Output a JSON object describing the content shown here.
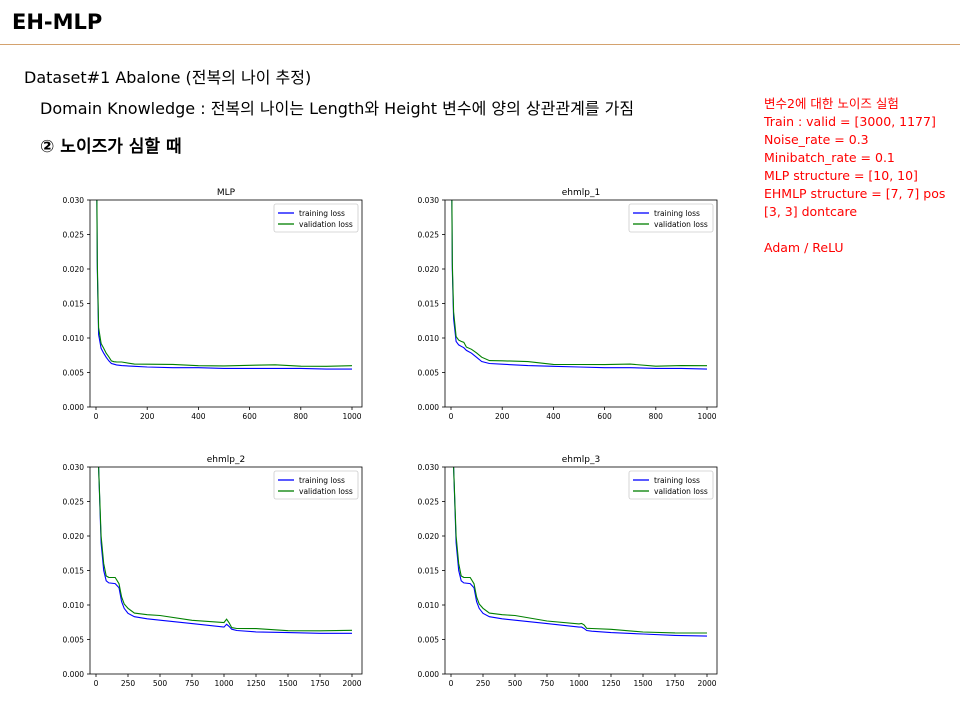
{
  "slide": {
    "title": "EH-MLP",
    "line1": "Dataset#1 Abalone (전복의 나이 추정)",
    "line2": "Domain Knowledge : 전복의 나이는 Length와 Height 변수에 양의 상관관계를 가짐",
    "line3": "② 노이즈가 심할 때"
  },
  "notes": [
    "변수2에 대한 노이즈 실험",
    "Train : valid = [3000, 1177]",
    "Noise_rate = 0.3",
    "Minibatch_rate = 0.1",
    "MLP structure = [10, 10]",
    "EHMLP structure = [7, 7] pos",
    "[3, 3] dontcare",
    "",
    "Adam / ReLU"
  ],
  "colors": {
    "training": "#0000ff",
    "validation": "#008000",
    "accent_rule": "#d4a26e",
    "notes": "#ff0000"
  },
  "chart_data": [
    {
      "type": "line",
      "title": "MLP",
      "xlim": [
        0,
        1000
      ],
      "ylim": [
        0.0,
        0.03
      ],
      "xticks": [
        0,
        200,
        400,
        600,
        800,
        1000
      ],
      "yticks": [
        "0.000",
        "0.005",
        "0.010",
        "0.015",
        "0.020",
        "0.025",
        "0.030"
      ],
      "legend": "top-right",
      "series": [
        {
          "name": "training loss",
          "color": "#0000ff",
          "x": [
            0,
            5,
            10,
            20,
            30,
            40,
            50,
            60,
            70,
            80,
            100,
            150,
            200,
            300,
            400,
            500,
            600,
            700,
            800,
            900,
            1000
          ],
          "y": [
            0.05,
            0.02,
            0.0105,
            0.0085,
            0.0078,
            0.0072,
            0.0067,
            0.0063,
            0.0062,
            0.0061,
            0.006,
            0.0059,
            0.0058,
            0.0057,
            0.0057,
            0.0056,
            0.0056,
            0.0056,
            0.0056,
            0.0055,
            0.0055
          ]
        },
        {
          "name": "validation loss",
          "color": "#008000",
          "x": [
            0,
            5,
            10,
            20,
            30,
            40,
            50,
            60,
            70,
            80,
            100,
            150,
            200,
            300,
            400,
            500,
            600,
            700,
            800,
            900,
            1000
          ],
          "y": [
            0.05,
            0.021,
            0.0115,
            0.0092,
            0.0085,
            0.0078,
            0.0072,
            0.0068,
            0.0066,
            0.0065,
            0.0064,
            0.0063,
            0.0062,
            0.0061,
            0.0061,
            0.006,
            0.006,
            0.006,
            0.006,
            0.0059,
            0.0059
          ]
        }
      ]
    },
    {
      "type": "line",
      "title": "ehmlp_1",
      "xlim": [
        0,
        1000
      ],
      "ylim": [
        0.0,
        0.03
      ],
      "xticks": [
        0,
        200,
        400,
        600,
        800,
        1000
      ],
      "yticks": [
        "0.000",
        "0.005",
        "0.010",
        "0.015",
        "0.020",
        "0.025",
        "0.030"
      ],
      "legend": "top-right",
      "series": [
        {
          "name": "training loss",
          "color": "#0000ff",
          "x": [
            0,
            5,
            10,
            20,
            30,
            40,
            50,
            60,
            80,
            100,
            120,
            150,
            200,
            300,
            400,
            500,
            600,
            700,
            800,
            900,
            1000
          ],
          "y": [
            0.05,
            0.02,
            0.0128,
            0.0095,
            0.009,
            0.0088,
            0.0086,
            0.0082,
            0.0078,
            0.0072,
            0.0066,
            0.0063,
            0.0062,
            0.006,
            0.0059,
            0.0058,
            0.0057,
            0.0057,
            0.0056,
            0.0056,
            0.0055
          ]
        },
        {
          "name": "validation loss",
          "color": "#008000",
          "x": [
            0,
            5,
            10,
            20,
            30,
            40,
            50,
            60,
            80,
            100,
            120,
            150,
            200,
            300,
            400,
            500,
            600,
            700,
            800,
            900,
            1000
          ],
          "y": [
            0.05,
            0.021,
            0.0138,
            0.0102,
            0.0097,
            0.0095,
            0.0093,
            0.0088,
            0.0084,
            0.0078,
            0.0071,
            0.0068,
            0.0067,
            0.0065,
            0.0063,
            0.0062,
            0.0061,
            0.0061,
            0.006,
            0.006,
            0.0059
          ]
        }
      ]
    },
    {
      "type": "line",
      "title": "ehmlp_2",
      "xlim": [
        0,
        2000
      ],
      "ylim": [
        0.0,
        0.03
      ],
      "xticks": [
        0,
        250,
        500,
        750,
        1000,
        1250,
        1500,
        1750,
        2000
      ],
      "yticks": [
        "0.000",
        "0.005",
        "0.010",
        "0.015",
        "0.020",
        "0.025",
        "0.030"
      ],
      "legend": "top-right",
      "series": [
        {
          "name": "training loss",
          "color": "#0000ff",
          "x": [
            0,
            20,
            40,
            60,
            80,
            100,
            150,
            180,
            200,
            220,
            250,
            300,
            400,
            500,
            750,
            1000,
            1020,
            1040,
            1060,
            1100,
            1250,
            1500,
            1750,
            2000
          ],
          "y": [
            0.05,
            0.03,
            0.019,
            0.015,
            0.0135,
            0.0132,
            0.0131,
            0.0125,
            0.0105,
            0.0095,
            0.0088,
            0.0083,
            0.008,
            0.0078,
            0.0073,
            0.0068,
            0.0072,
            0.0069,
            0.0065,
            0.0063,
            0.0061,
            0.006,
            0.0059,
            0.0059
          ]
        },
        {
          "name": "validation loss",
          "color": "#008000",
          "x": [
            0,
            20,
            40,
            60,
            80,
            100,
            150,
            180,
            200,
            220,
            250,
            300,
            400,
            500,
            750,
            1000,
            1020,
            1040,
            1060,
            1100,
            1250,
            1500,
            1750,
            2000
          ],
          "y": [
            0.05,
            0.03,
            0.02,
            0.016,
            0.0142,
            0.014,
            0.0139,
            0.0132,
            0.0112,
            0.0101,
            0.0094,
            0.0089,
            0.0086,
            0.0084,
            0.0079,
            0.0075,
            0.0079,
            0.0073,
            0.0068,
            0.0066,
            0.0065,
            0.0064,
            0.0063,
            0.0063
          ]
        }
      ]
    },
    {
      "type": "line",
      "title": "ehmlp_3",
      "xlim": [
        0,
        2000
      ],
      "ylim": [
        0.0,
        0.03
      ],
      "xticks": [
        0,
        250,
        500,
        750,
        1000,
        1250,
        1500,
        1750,
        2000
      ],
      "yticks": [
        "0.000",
        "0.005",
        "0.010",
        "0.015",
        "0.020",
        "0.025",
        "0.030"
      ],
      "legend": "top-right",
      "series": [
        {
          "name": "training loss",
          "color": "#0000ff",
          "x": [
            0,
            20,
            40,
            60,
            80,
            100,
            150,
            180,
            200,
            220,
            250,
            300,
            400,
            500,
            750,
            1000,
            1020,
            1040,
            1060,
            1100,
            1250,
            1500,
            1750,
            2000
          ],
          "y": [
            0.05,
            0.03,
            0.019,
            0.015,
            0.0135,
            0.0132,
            0.0131,
            0.0125,
            0.0105,
            0.0095,
            0.0088,
            0.0083,
            0.008,
            0.0078,
            0.0073,
            0.0068,
            0.0068,
            0.0066,
            0.0063,
            0.0062,
            0.006,
            0.0058,
            0.0056,
            0.0055
          ]
        },
        {
          "name": "validation loss",
          "color": "#008000",
          "x": [
            0,
            20,
            40,
            60,
            80,
            100,
            150,
            180,
            200,
            220,
            250,
            300,
            400,
            500,
            750,
            1000,
            1020,
            1040,
            1060,
            1100,
            1250,
            1500,
            1750,
            2000
          ],
          "y": [
            0.05,
            0.03,
            0.02,
            0.016,
            0.0142,
            0.014,
            0.0139,
            0.0132,
            0.0112,
            0.0101,
            0.0094,
            0.0089,
            0.0086,
            0.0084,
            0.0078,
            0.0073,
            0.0073,
            0.007,
            0.0067,
            0.0066,
            0.0064,
            0.0062,
            0.006,
            0.0059
          ]
        }
      ]
    }
  ]
}
